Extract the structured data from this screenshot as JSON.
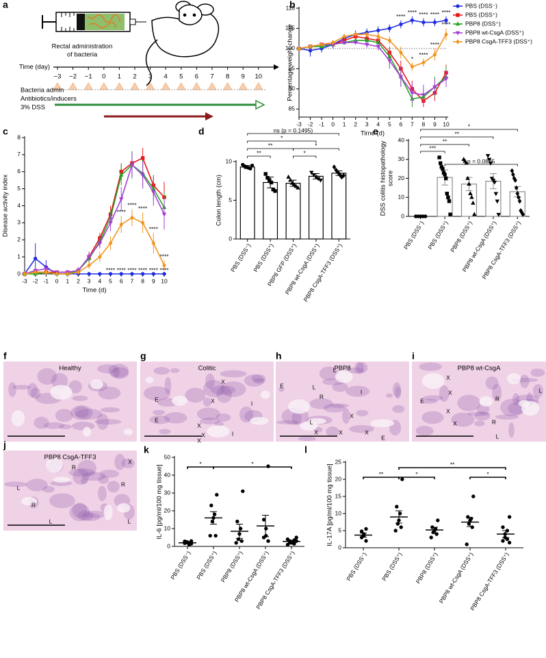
{
  "diagram": {
    "panel": "a",
    "caption": [
      "Rectal administration",
      "of bacteria"
    ],
    "time_label": "Time (day)",
    "days": [
      "−3",
      "−2",
      "−1",
      "0",
      "1",
      "2",
      "3",
      "4",
      "5",
      "6",
      "7",
      "8",
      "9",
      "10"
    ],
    "rows": [
      "Bacteria admin",
      "Antibiotics/inducers",
      "3% DSS"
    ]
  },
  "chart_data": [
    {
      "type": "line",
      "panel": "b",
      "xlabel": "Time (d)",
      "ylabel": "Percentage weight change",
      "legend": "right",
      "x": [
        -3,
        -2,
        -1,
        0,
        1,
        2,
        3,
        4,
        5,
        6,
        7,
        8,
        9,
        10
      ],
      "xlim": [
        -3,
        10
      ],
      "xticks": [
        -3,
        -2,
        -1,
        0,
        1,
        2,
        3,
        4,
        5,
        6,
        7,
        8,
        9,
        10
      ],
      "ylim": [
        83,
        110
      ],
      "yticks": [
        85,
        90,
        95,
        100,
        105,
        110
      ],
      "hline": 100,
      "series": [
        {
          "name": "PBS (DSS⁻)",
          "color": "#1f2de0",
          "marker": "circle",
          "values": [
            100,
            99.5,
            100,
            101,
            102.5,
            103.5,
            104,
            104.5,
            105,
            106,
            107,
            106.5,
            106.5,
            107
          ],
          "errors": [
            0.5,
            1.5,
            1,
            1,
            1,
            1,
            1,
            1,
            1,
            1,
            1,
            1,
            1,
            1
          ]
        },
        {
          "name": "PBS (DSS⁺)",
          "color": "#e8151b",
          "marker": "square",
          "values": [
            100,
            100.5,
            101,
            101,
            102,
            103,
            102.5,
            102,
            99,
            95,
            90,
            87,
            89,
            94
          ],
          "errors": [
            0,
            0.5,
            0.5,
            0.5,
            0.5,
            0.5,
            0.8,
            1,
            1.5,
            2,
            2,
            1.5,
            2,
            2
          ]
        },
        {
          "name": "PBP8 (DSS⁺)",
          "color": "#1fa51f",
          "marker": "triangle",
          "values": [
            100,
            100.5,
            100.5,
            101,
            101.5,
            102,
            102,
            101.5,
            98,
            93,
            87.5,
            88,
            90.5,
            93
          ],
          "errors": [
            0,
            0.5,
            0.5,
            0.5,
            0.5,
            0.5,
            0.8,
            1,
            2,
            2.5,
            2,
            2,
            2.5,
            2.5
          ]
        },
        {
          "name": "PBP8 wt-CsgA (DSS⁺)",
          "color": "#a43fd6",
          "marker": "triangle-down",
          "values": [
            100,
            100.5,
            101,
            101,
            101.5,
            101.5,
            101,
            100.5,
            97,
            93,
            89,
            88.5,
            90.5,
            92.5
          ],
          "errors": [
            0,
            0.5,
            0.5,
            0.5,
            0.5,
            0.5,
            0.8,
            1,
            2,
            2.5,
            2.5,
            2.5,
            2,
            2
          ]
        },
        {
          "name": "PBP8 CsgA-TFF3 (DSS⁺)",
          "color": "#f0951f",
          "marker": "diamond",
          "values": [
            100,
            100.5,
            101,
            101.5,
            103,
            103.5,
            103.5,
            103,
            102,
            99,
            95.5,
            96.5,
            98.5,
            103.5
          ],
          "errors": [
            0,
            0.5,
            0.5,
            0.5,
            0.5,
            0.5,
            0.5,
            1,
            1,
            1.5,
            1,
            1,
            1.5,
            1.5
          ]
        }
      ],
      "annotations": [
        {
          "text": "****",
          "x": 6,
          "series": 0
        },
        {
          "text": "****",
          "x": 7,
          "series": 0
        },
        {
          "text": "****",
          "x": 8,
          "series": 0
        },
        {
          "text": "****",
          "x": 9,
          "series": 0
        },
        {
          "text": "****",
          "x": 10,
          "series": 0
        },
        {
          "text": "*",
          "x": 7,
          "series": 4
        },
        {
          "text": "****",
          "x": 8,
          "series": 4
        },
        {
          "text": "****",
          "x": 9,
          "series": 4
        },
        {
          "text": "****",
          "x": 10,
          "series": 4
        }
      ]
    },
    {
      "type": "line",
      "panel": "c",
      "xlabel": "Time (d)",
      "ylabel": "Disease activity index",
      "x": [
        -3,
        -2,
        -1,
        0,
        1,
        2,
        3,
        4,
        5,
        6,
        7,
        8,
        9,
        10
      ],
      "xlim": [
        -3,
        10
      ],
      "xticks": [
        -3,
        -2,
        -1,
        0,
        1,
        2,
        3,
        4,
        5,
        6,
        7,
        8,
        9,
        10
      ],
      "ylim": [
        0,
        8
      ],
      "yticks": [
        0,
        1,
        2,
        3,
        4,
        5,
        6,
        7,
        8
      ],
      "series": [
        {
          "color": "#1f2de0",
          "marker": "circle",
          "values": [
            0,
            0.9,
            0.4,
            0,
            0,
            0,
            0,
            0,
            0,
            0,
            0,
            0,
            0,
            0
          ],
          "errors": [
            0,
            0.9,
            0.4,
            0,
            0,
            0,
            0,
            0,
            0,
            0,
            0,
            0,
            0,
            0
          ]
        },
        {
          "color": "#e8151b",
          "marker": "square",
          "values": [
            0,
            0.1,
            0.1,
            0.1,
            0.1,
            0.2,
            1,
            2.1,
            3.5,
            6,
            6.5,
            6.8,
            5.2,
            4.5
          ],
          "errors": [
            0,
            0.1,
            0.1,
            0.1,
            0.1,
            0.2,
            0.3,
            0.3,
            0.5,
            0.5,
            0.7,
            0.6,
            0.6,
            0.9
          ]
        },
        {
          "color": "#1fa51f",
          "marker": "triangle",
          "values": [
            0,
            0,
            0.1,
            0,
            0,
            0.2,
            0.9,
            1.9,
            3.3,
            5.8,
            6.4,
            5.9,
            5,
            3.9
          ],
          "errors": [
            0,
            0,
            0.1,
            0,
            0,
            0.2,
            0.3,
            0.3,
            0.4,
            0.6,
            0.8,
            0.8,
            0.7,
            0.9
          ]
        },
        {
          "color": "#a43fd6",
          "marker": "triangle-down",
          "values": [
            0,
            0.2,
            0.3,
            0.1,
            0.1,
            0.2,
            1,
            1.8,
            3,
            4.4,
            6.4,
            5.8,
            4.8,
            3.5
          ],
          "errors": [
            0,
            0.2,
            0.3,
            0.1,
            0.1,
            0.2,
            0.3,
            0.3,
            0.5,
            0.7,
            0.7,
            0.8,
            0.8,
            0.9
          ]
        },
        {
          "color": "#f0951f",
          "marker": "diamond",
          "values": [
            0,
            0.1,
            0.1,
            0,
            0,
            0.1,
            0.5,
            1,
            1.8,
            2.9,
            3.3,
            3,
            1.8,
            0.5
          ],
          "errors": [
            0,
            0.1,
            0.1,
            0,
            0,
            0.1,
            0.2,
            0.3,
            0.4,
            0.5,
            0.5,
            0.6,
            0.6,
            0.3
          ]
        }
      ],
      "annotations": [
        {
          "text": "****",
          "x": 5,
          "series": 0
        },
        {
          "text": "****",
          "x": 6,
          "series": 0
        },
        {
          "text": "****",
          "x": 7,
          "series": 0
        },
        {
          "text": "****",
          "x": 8,
          "series": 0
        },
        {
          "text": "****",
          "x": 9,
          "series": 0
        },
        {
          "text": "****",
          "x": 10,
          "series": 0
        },
        {
          "text": "****",
          "x": 6,
          "series": 4
        },
        {
          "text": "****",
          "x": 7,
          "series": 4
        },
        {
          "text": "****",
          "x": 8,
          "series": 4
        },
        {
          "text": "****",
          "x": 9,
          "series": 4
        },
        {
          "text": "****",
          "x": 10,
          "series": 4
        }
      ]
    },
    {
      "type": "bar",
      "panel": "d",
      "ylabel": "Colon length (cm)",
      "ylim": [
        0,
        10
      ],
      "yticks": [
        0,
        5,
        10
      ],
      "categories": [
        "PBS (DSS⁻)",
        "PBS (DSS⁺)",
        "PBP8 GFP (DSS⁺)",
        "PBP8 wt-CsgA (DSS⁺)",
        "PBP8 CsgA-TFF3 (DSS⁺)"
      ],
      "values": [
        9.3,
        7.3,
        7.2,
        8.1,
        8.5
      ],
      "errors": [
        0.2,
        0.7,
        0.4,
        0.35,
        0.3
      ],
      "points": [
        [
          9.6,
          9.4,
          9.3,
          9.2,
          9.1,
          9.5
        ],
        [
          8.4,
          7.9,
          7.6,
          7.3,
          6.4,
          6.2
        ],
        [
          8.0,
          7.6,
          7.2,
          7.0,
          6.8,
          6.6
        ],
        [
          8.6,
          8.3,
          8.0,
          7.8,
          7.6
        ],
        [
          9.3,
          8.9,
          8.6,
          8.3,
          8.0,
          8.2
        ]
      ],
      "markers": [
        "circle",
        "square",
        "triangle",
        "triangle-down",
        "diamond"
      ],
      "bar_color": "#ffffff",
      "edge_color": "#000000",
      "point_color": "#000000",
      "brackets": [
        {
          "from": 0,
          "to": 4,
          "text": "ns (p = 0.1495)"
        },
        {
          "from": 0,
          "to": 3,
          "text": "*"
        },
        {
          "from": 0,
          "to": 2,
          "text": "**"
        },
        {
          "from": 2,
          "to": 4,
          "text": "*"
        },
        {
          "from": 0,
          "to": 1,
          "text": "**"
        },
        {
          "from": 2,
          "to": 3,
          "text": "*"
        }
      ]
    },
    {
      "type": "bar",
      "panel": "e",
      "ylabel": [
        "DSS colitis histopathology",
        "score"
      ],
      "ylim": [
        0,
        40
      ],
      "yticks": [
        0,
        10,
        20,
        30,
        40
      ],
      "categories": [
        "PBS (DSS⁻)",
        "PBS (DSS⁺)",
        "PBP8 (DSS⁺)",
        "PBP8 wt-CsgA (DSS⁺)",
        "PBP8 CsgA-TFF3 (DSS⁺)"
      ],
      "values": [
        0,
        20.5,
        17,
        18.5,
        13
      ],
      "errors": [
        0,
        4,
        3.5,
        4,
        2.7
      ],
      "points": [
        [
          0,
          0,
          0,
          0,
          0
        ],
        [
          31,
          28,
          26,
          25,
          23,
          22,
          20,
          12,
          10,
          8,
          1
        ],
        [
          30,
          29,
          28,
          20,
          17,
          12,
          10,
          7,
          1
        ],
        [
          32,
          30,
          28,
          20,
          19,
          18,
          12,
          8,
          1
        ],
        [
          24,
          22,
          20,
          19,
          15,
          12,
          10,
          8,
          3,
          2,
          1
        ]
      ],
      "markers": [
        "circle",
        "square",
        "triangle",
        "triangle-down",
        "diamond"
      ],
      "bar_color": "#ffffff",
      "edge_color": "#8a8a8a",
      "point_color": "#000000",
      "brackets": [
        {
          "from": 0,
          "to": 1,
          "text": "***"
        },
        {
          "from": 0,
          "to": 2,
          "text": "**"
        },
        {
          "from": 0,
          "to": 3,
          "text": "**"
        },
        {
          "from": 0,
          "to": 4,
          "text": "*"
        },
        {
          "from": 1,
          "to": 4,
          "text": "p = 0.0825"
        }
      ]
    },
    {
      "type": "dot",
      "panel": "k",
      "ylabel": "IL-6 [pg/ml/100 mg tissue]",
      "ylim": [
        0,
        50
      ],
      "yticks": [
        0,
        10,
        20,
        30,
        40,
        50
      ],
      "categories": [
        "PBS (DSS⁻)",
        "PBS (DSS⁺)",
        "PBP8 (DSS⁺)",
        "PBP8 wt-CsgA (DSS⁺)",
        "PBP8 CsgA-TFF3 (DSS⁺)"
      ],
      "values": [
        2,
        16,
        8.5,
        11.5,
        2.8
      ],
      "errors": [
        0.4,
        3.5,
        4,
        6,
        0.6
      ],
      "points": [
        [
          1.5,
          1.8,
          2,
          2.2,
          2.5,
          1,
          2.8,
          3
        ],
        [
          29,
          23,
          18,
          16,
          14,
          6,
          6
        ],
        [
          31,
          14,
          10,
          7,
          4,
          3,
          2
        ],
        [
          45,
          15,
          10,
          6,
          5,
          3
        ],
        [
          5,
          4,
          3.5,
          3,
          2.5,
          2,
          2,
          1.5,
          1,
          3
        ]
      ],
      "point_color": "#000000",
      "line_color": "#000000",
      "brackets": [
        {
          "from": 0,
          "to": 1,
          "text": "*"
        },
        {
          "from": 1,
          "to": 4,
          "text": "*"
        }
      ]
    },
    {
      "type": "dot",
      "panel": "l",
      "ylabel": "IL-17A [pg/ml/100 mg tissue]",
      "ylim": [
        0,
        25
      ],
      "yticks": [
        0,
        5,
        10,
        15,
        20,
        25
      ],
      "categories": [
        "PBS (DSS⁻)",
        "PBS (DSS⁺)",
        "PBP8 (DSS⁺)",
        "PBP8 wt-CsgA (DSS⁺)",
        "PBP8 CsgA-TFF3 (DSS⁺)"
      ],
      "values": [
        3.7,
        9,
        5.2,
        7.5,
        4
      ],
      "errors": [
        0.6,
        1.8,
        0.8,
        1.3,
        1.0
      ],
      "points": [
        [
          5.5,
          4.8,
          4,
          3.5,
          3,
          2
        ],
        [
          20,
          12,
          10,
          8,
          7,
          6,
          5
        ],
        [
          8,
          6,
          5.5,
          5,
          4.5,
          4,
          3
        ],
        [
          15,
          9,
          8.5,
          8,
          7,
          6,
          1
        ],
        [
          9,
          6,
          5,
          4,
          3,
          2.5,
          2,
          1.5
        ]
      ],
      "point_color": "#000000",
      "line_color": "#000000",
      "brackets": [
        {
          "from": 0,
          "to": 1,
          "text": "**"
        },
        {
          "from": 1,
          "to": 2,
          "text": "*"
        },
        {
          "from": 1,
          "to": 4,
          "text": "**"
        },
        {
          "from": 3,
          "to": 4,
          "text": "*"
        }
      ]
    }
  ],
  "images": [
    {
      "panel": "f",
      "title": "Healthy",
      "labels": []
    },
    {
      "panel": "g",
      "title": "Colitic",
      "labels": [
        "X",
        "E",
        "X",
        "I",
        "E",
        "X",
        "X",
        "I",
        "X"
      ]
    },
    {
      "panel": "h",
      "title": "PBP8",
      "labels": [
        "L",
        "E",
        "L",
        "R",
        "I",
        "L",
        "X",
        "X",
        "X",
        "X",
        "E"
      ]
    },
    {
      "panel": "i",
      "title": "PBP8 wt-CsgA",
      "labels": [
        "X",
        "X",
        "E",
        "R",
        "X",
        "X",
        "R",
        "L",
        "L"
      ]
    },
    {
      "panel": "j",
      "title": "PBP8 CsgA-TFF3",
      "labels": [
        "R",
        "X",
        "L",
        "R",
        "R",
        "L",
        "L"
      ]
    }
  ]
}
